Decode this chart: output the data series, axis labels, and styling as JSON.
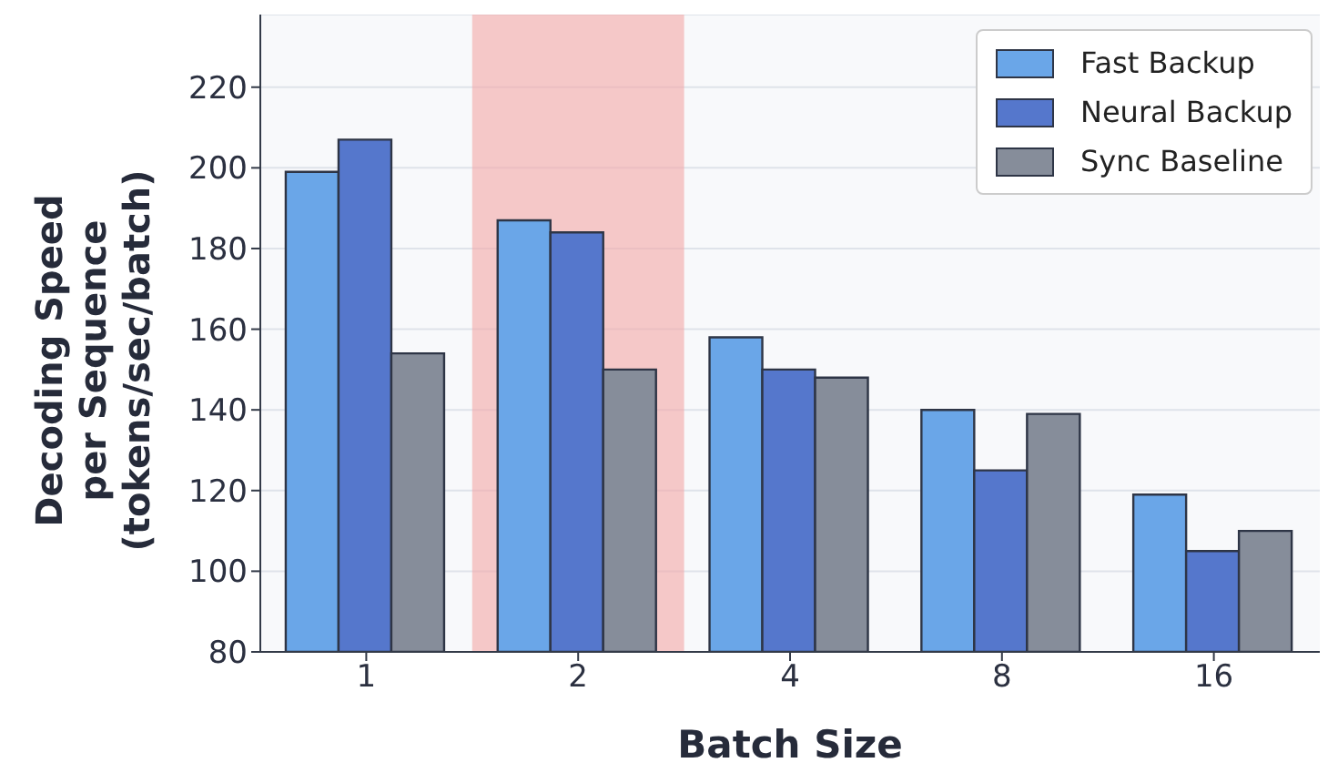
{
  "chart_data": {
    "type": "bar",
    "xlabel": "Batch Size",
    "ylabel": "Decoding Speed\nper Sequence\n(tokens/sec/batch)",
    "categories": [
      "1",
      "2",
      "4",
      "8",
      "16"
    ],
    "series": [
      {
        "name": "Fast Backup",
        "color": "#6aa6e8",
        "values": [
          199,
          187,
          158,
          140,
          119
        ]
      },
      {
        "name": "Neural Backup",
        "color": "#5577cc",
        "values": [
          207,
          184,
          150,
          125,
          105
        ]
      },
      {
        "name": "Sync Baseline",
        "color": "#868d9a",
        "values": [
          154,
          150,
          148,
          139,
          110
        ]
      }
    ],
    "ylim": [
      80,
      238
    ],
    "yticks": [
      80,
      100,
      120,
      140,
      160,
      180,
      200,
      220
    ],
    "bands": [
      {
        "axis": "x",
        "from": "2",
        "to": "2",
        "color": "#f4a6a6"
      }
    ],
    "grid": "y",
    "legend": "top right"
  }
}
